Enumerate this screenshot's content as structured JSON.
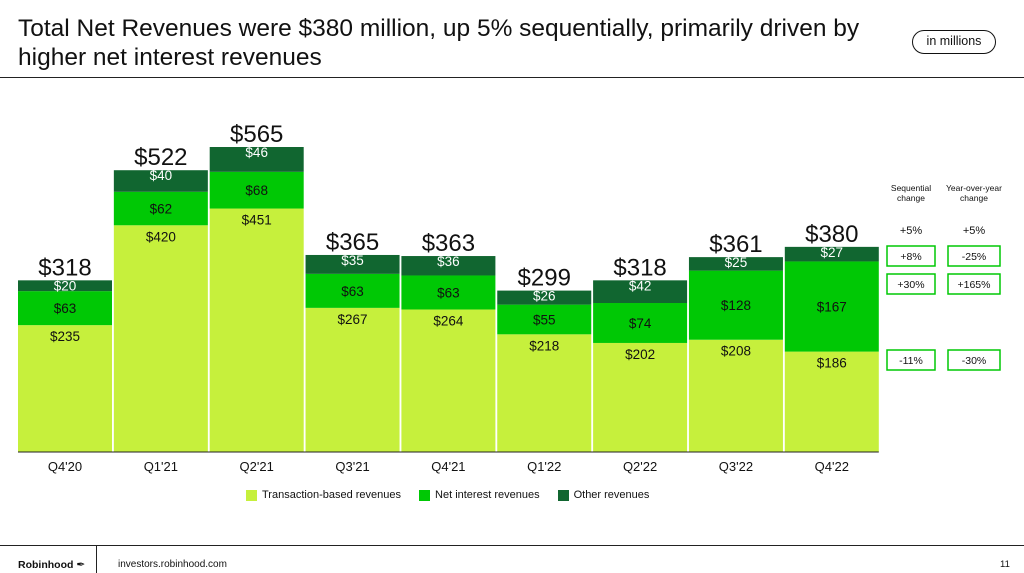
{
  "header": {
    "title": "Total Net Revenues were $380 million, up 5% sequentially, primarily driven by higher net interest revenues",
    "unit_badge": "in millions"
  },
  "chart_data": {
    "type": "bar",
    "stacked": true,
    "categories": [
      "Q4'20",
      "Q1'21",
      "Q2'21",
      "Q3'21",
      "Q4'21",
      "Q1'22",
      "Q2'22",
      "Q3'22",
      "Q4'22"
    ],
    "series": [
      {
        "name": "Transaction-based revenues",
        "color": "#c6f03c",
        "values": [
          235,
          420,
          451,
          267,
          264,
          218,
          202,
          208,
          186
        ]
      },
      {
        "name": "Net interest revenues",
        "color": "#00c805",
        "values": [
          63,
          62,
          68,
          63,
          63,
          55,
          74,
          128,
          167
        ]
      },
      {
        "name": "Other revenues",
        "color": "#116630",
        "values": [
          20,
          40,
          46,
          35,
          36,
          26,
          42,
          25,
          27
        ]
      }
    ],
    "totals": [
      318,
      522,
      565,
      365,
      363,
      299,
      318,
      361,
      380
    ],
    "total_labels": [
      "$318",
      "$522",
      "$565",
      "$365",
      "$363",
      "$299",
      "$318",
      "$361",
      "$380"
    ],
    "segment_labels": [
      [
        "$235",
        "$420",
        "$451",
        "$267",
        "$264",
        "$218",
        "$202",
        "$208",
        "$186"
      ],
      [
        "$63",
        "$62",
        "$68",
        "$63",
        "$63",
        "$55",
        "$74",
        "$128",
        "$167"
      ],
      [
        "$20",
        "$40",
        "$46",
        "$35",
        "$36",
        "$26",
        "$42",
        "$25",
        "$27"
      ]
    ],
    "ylim": [
      0,
      565
    ],
    "grid": false,
    "legend_position": "bottom",
    "legend_marker": "square",
    "change_table": {
      "headers": [
        [
          "Sequential",
          "change"
        ],
        [
          "Year-over-year",
          "change"
        ]
      ],
      "total_row": [
        "+5%",
        "+5%"
      ],
      "rows": [
        {
          "series": "Other revenues",
          "sequential": "+8%",
          "yoy": "-25%"
        },
        {
          "series": "Net interest revenues",
          "sequential": "+30%",
          "yoy": "+165%"
        },
        {
          "series": "Transaction-based revenues",
          "sequential": "-11%",
          "yoy": "-30%"
        }
      ],
      "box_color": "#00c805"
    }
  },
  "footer": {
    "brand": "Robinhood",
    "brand_icon": "feather-icon",
    "website": "investors.robinhood.com",
    "page_number": "11"
  }
}
